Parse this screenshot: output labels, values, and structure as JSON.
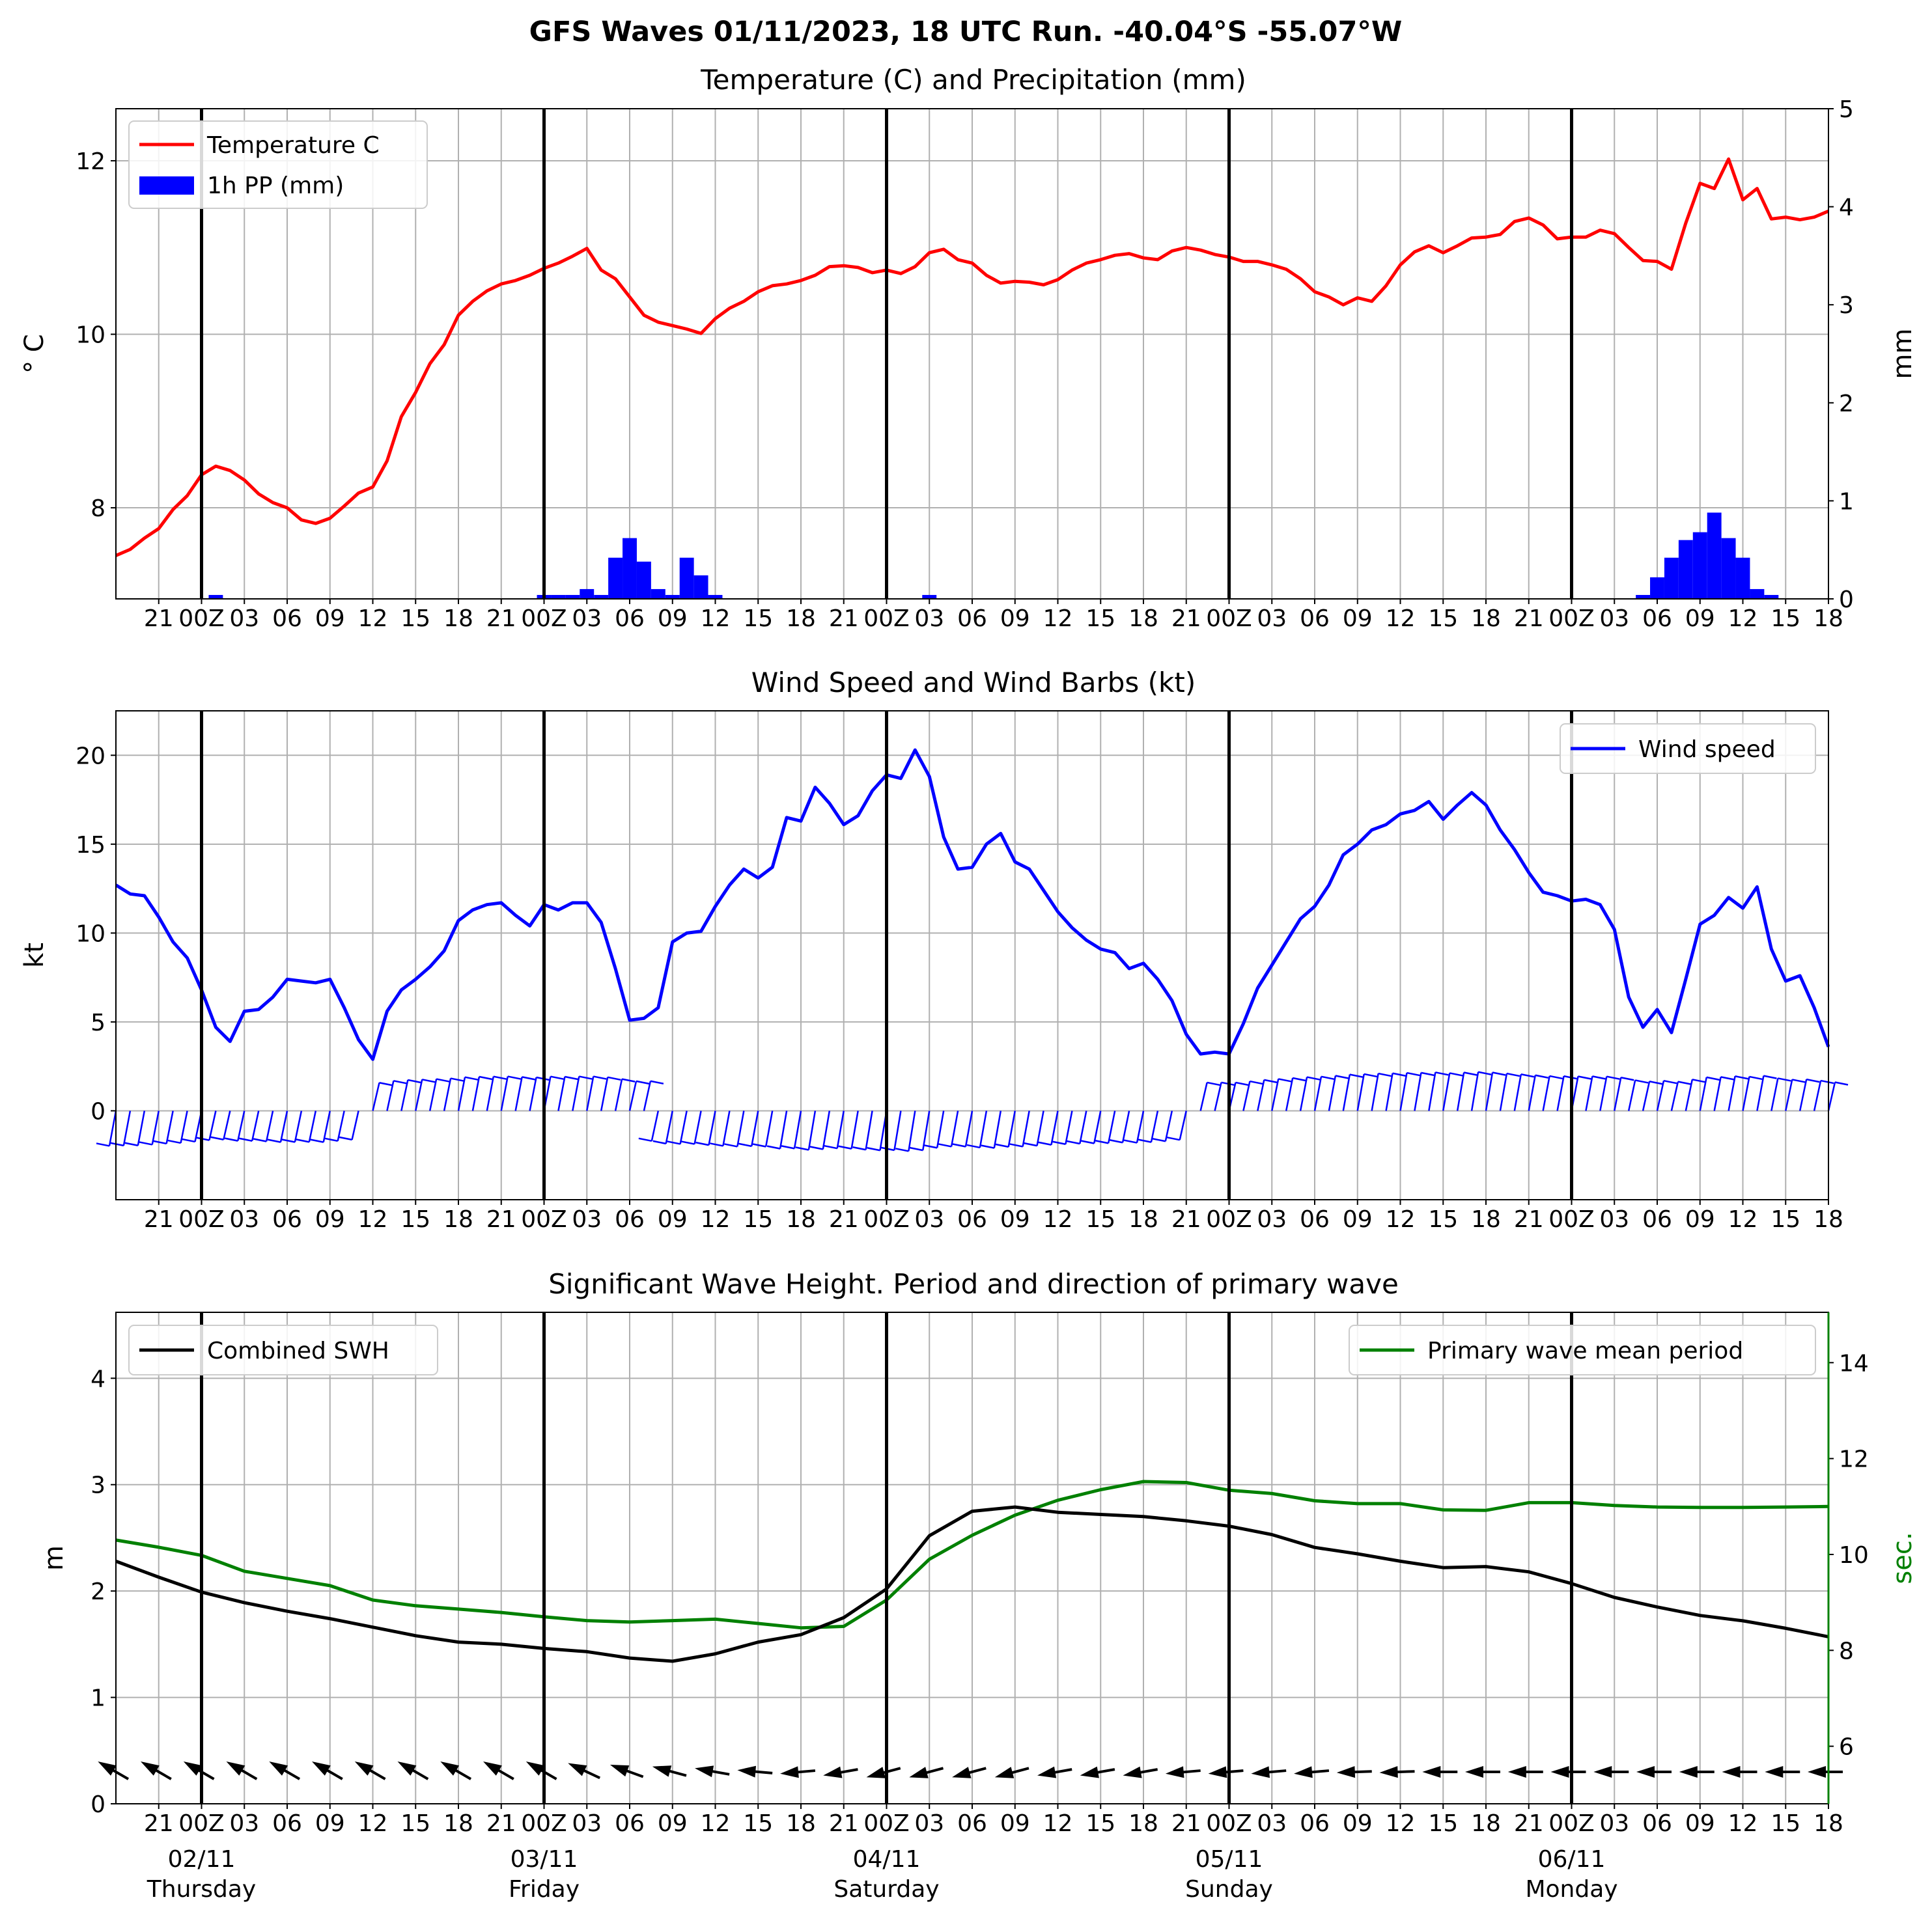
{
  "suptitle": "GFS Waves 01/11/2023, 18 UTC Run. -40.04°S -55.07°W",
  "colors": {
    "temperature": "#ff0000",
    "precip": "#0000ff",
    "wind": "#0000ff",
    "swh": "#000000",
    "period": "#008000",
    "grid": "#b0b0b0",
    "day_line": "#000000"
  },
  "time_axis": {
    "hours_labels": [
      "21",
      "00Z",
      "03",
      "06",
      "09",
      "12",
      "15",
      "18",
      "21",
      "00Z",
      "03",
      "06",
      "09",
      "12",
      "15",
      "18",
      "21",
      "00Z",
      "03",
      "06",
      "09",
      "12",
      "15",
      "18",
      "21",
      "00Z",
      "03",
      "06",
      "09",
      "12",
      "15",
      "18",
      "21",
      "00Z",
      "03",
      "06",
      "09",
      "12",
      "15",
      "18"
    ],
    "day_labels": [
      {
        "date": "02/11",
        "weekday": "Thursday"
      },
      {
        "date": "03/11",
        "weekday": "Friday"
      },
      {
        "date": "04/11",
        "weekday": "Saturday"
      },
      {
        "date": "05/11",
        "weekday": "Sunday"
      },
      {
        "date": "06/11",
        "weekday": "Monday"
      }
    ],
    "span_hours": [
      0,
      120
    ],
    "day_boundaries_hours": [
      6,
      30,
      54,
      78,
      102
    ]
  },
  "chart_data": [
    {
      "type": "line",
      "title": "Temperature (C) and Precipitation (mm)",
      "ylabel": "$^\\circ$C",
      "ylabel_display": "° C",
      "y2label": "mm",
      "ylim": [
        6.95,
        12.6
      ],
      "y2lim": [
        0,
        5
      ],
      "yticks": [
        8,
        10,
        12
      ],
      "y2ticks": [
        0,
        1,
        2,
        3,
        4,
        5
      ],
      "legend": [
        "Temperature C",
        "1h PP (mm)"
      ],
      "legend_position": "upper left",
      "grid": true,
      "series": [
        {
          "name": "Temperature C",
          "x": [
            0,
            1,
            2,
            3,
            4,
            5,
            6,
            7,
            8,
            9,
            10,
            11,
            12,
            13,
            14,
            15,
            16,
            17,
            18,
            19,
            20,
            21,
            22,
            23,
            24,
            25,
            26,
            27,
            28,
            29,
            30,
            31,
            32,
            33,
            34,
            35,
            36,
            37,
            38,
            39,
            40,
            41,
            42,
            43,
            44,
            45,
            46,
            47,
            48,
            49,
            50,
            51,
            52,
            53,
            54,
            55,
            56,
            57,
            58,
            59,
            60,
            61,
            62,
            63,
            64,
            65,
            66,
            67,
            68,
            69,
            70,
            71,
            72,
            73,
            74,
            75,
            76,
            77,
            78,
            79,
            80,
            81,
            82,
            83,
            84,
            85,
            86,
            87,
            88,
            89,
            90,
            91,
            92,
            93,
            94,
            95,
            96,
            97,
            98,
            99,
            100,
            101,
            102,
            103,
            104,
            105,
            106,
            107,
            108,
            109,
            110,
            111,
            112,
            113,
            114,
            115,
            116,
            117,
            118,
            119,
            120
          ],
          "values": [
            7.45,
            7.52,
            7.65,
            7.76,
            7.98,
            8.14,
            8.38,
            8.48,
            8.43,
            8.32,
            8.16,
            8.06,
            8.0,
            7.86,
            7.82,
            7.88,
            8.02,
            8.17,
            8.24,
            8.54,
            9.05,
            9.33,
            9.66,
            9.88,
            10.22,
            10.38,
            10.5,
            10.58,
            10.62,
            10.68,
            10.76,
            10.82,
            10.9,
            10.99,
            10.74,
            10.64,
            10.43,
            10.22,
            10.14,
            10.1,
            10.06,
            10.01,
            10.18,
            10.3,
            10.38,
            10.49,
            10.56,
            10.58,
            10.62,
            10.68,
            10.78,
            10.79,
            10.77,
            10.71,
            10.74,
            10.7,
            10.78,
            10.94,
            10.98,
            10.86,
            10.82,
            10.68,
            10.59,
            10.61,
            10.6,
            10.57,
            10.63,
            10.74,
            10.82,
            10.86,
            10.91,
            10.93,
            10.88,
            10.86,
            10.96,
            11.0,
            10.97,
            10.92,
            10.89,
            10.84,
            10.84,
            10.8,
            10.75,
            10.64,
            10.49,
            10.43,
            10.34,
            10.42,
            10.38,
            10.56,
            10.8,
            10.95,
            11.02,
            10.94,
            11.02,
            11.11,
            11.12,
            11.15,
            11.3,
            11.34,
            11.26,
            11.1,
            11.12,
            11.12,
            11.2,
            11.16,
            11.0,
            10.85,
            10.84,
            10.75,
            11.28,
            11.74,
            11.68,
            12.02,
            11.55,
            11.68,
            11.33,
            11.35,
            11.32,
            11.35,
            11.42
          ]
        },
        {
          "name": "1h PP (mm)",
          "type": "bar",
          "x": [
            7,
            30,
            31,
            32,
            33,
            34,
            35,
            36,
            37,
            38,
            39,
            40,
            41,
            42,
            57,
            107,
            108,
            109,
            110,
            111,
            112,
            113,
            114,
            115,
            116
          ],
          "values": [
            0.04,
            0.04,
            0.04,
            0.04,
            0.1,
            0.04,
            0.42,
            0.62,
            0.38,
            0.1,
            0.04,
            0.42,
            0.24,
            0.04,
            0.04,
            0.04,
            0.22,
            0.42,
            0.6,
            0.68,
            0.88,
            0.62,
            0.42,
            0.1,
            0.04
          ]
        }
      ]
    },
    {
      "type": "line",
      "title": "Wind Speed and Wind Barbs (kt)",
      "ylabel": "kt",
      "ylim": [
        -5,
        22.5
      ],
      "yticks": [
        0,
        5,
        10,
        15,
        20
      ],
      "legend": [
        "Wind speed"
      ],
      "legend_position": "upper right",
      "grid": true,
      "series": [
        {
          "name": "Wind speed",
          "x": [
            0,
            1,
            2,
            3,
            4,
            5,
            6,
            7,
            8,
            9,
            10,
            11,
            12,
            13,
            14,
            15,
            16,
            17,
            18,
            19,
            20,
            21,
            22,
            23,
            24,
            25,
            26,
            27,
            28,
            29,
            30,
            31,
            32,
            33,
            34,
            35,
            36,
            37,
            38,
            39,
            40,
            41,
            42,
            43,
            44,
            45,
            46,
            47,
            48,
            49,
            50,
            51,
            52,
            53,
            54,
            55,
            56,
            57,
            58,
            59,
            60,
            61,
            62,
            63,
            64,
            65,
            66,
            67,
            68,
            69,
            70,
            71,
            72,
            73,
            74,
            75,
            76,
            77,
            78,
            79,
            80,
            81,
            82,
            83,
            84,
            85,
            86,
            87,
            88,
            89,
            90,
            91,
            92,
            93,
            94,
            95,
            96,
            97,
            98,
            99,
            100,
            101,
            102,
            103,
            104,
            105,
            106,
            107,
            108,
            109,
            110,
            111,
            112,
            113,
            114,
            115,
            116,
            117,
            118,
            119,
            120
          ],
          "values": [
            12.7,
            12.2,
            12.1,
            10.9,
            9.5,
            8.6,
            6.8,
            4.7,
            3.9,
            5.6,
            5.7,
            6.4,
            7.4,
            7.3,
            7.2,
            7.4,
            5.8,
            4.0,
            2.9,
            5.6,
            6.8,
            7.4,
            8.1,
            9.0,
            10.7,
            11.3,
            11.6,
            11.7,
            11.0,
            10.4,
            11.6,
            11.3,
            11.7,
            11.7,
            10.6,
            8.0,
            5.1,
            5.2,
            5.8,
            9.5,
            10.0,
            10.1,
            11.5,
            12.7,
            13.6,
            13.1,
            13.7,
            16.5,
            16.3,
            18.2,
            17.3,
            16.1,
            16.6,
            18.0,
            18.9,
            18.7,
            20.3,
            18.8,
            15.4,
            13.6,
            13.7,
            15.0,
            15.6,
            14.0,
            13.6,
            12.4,
            11.2,
            10.3,
            9.6,
            9.1,
            8.9,
            8.0,
            8.3,
            7.4,
            6.2,
            4.3,
            3.2,
            3.3,
            3.2,
            4.9,
            6.9,
            8.2,
            9.5,
            10.8,
            11.5,
            12.7,
            14.4,
            15.0,
            15.8,
            16.1,
            16.7,
            16.9,
            17.4,
            16.4,
            17.2,
            17.9,
            17.2,
            15.8,
            14.7,
            13.4,
            12.3,
            12.1,
            11.8,
            11.9,
            11.6,
            10.2,
            6.4,
            4.7,
            5.7,
            4.4,
            7.4,
            10.5,
            11.0,
            12.0,
            11.4,
            12.6,
            9.1,
            7.3,
            7.6,
            5.8,
            3.6
          ]
        }
      ]
    },
    {
      "type": "line",
      "title": "Significant Wave Height. Period and direction of primary wave",
      "ylabel": "m",
      "y2label": "sec.",
      "ylim": [
        0,
        4.62
      ],
      "y2lim": [
        4.8,
        15.05
      ],
      "yticks": [
        0,
        1,
        2,
        3,
        4
      ],
      "y2ticks": [
        6,
        8,
        10,
        12,
        14
      ],
      "legend": [
        "Combined SWH",
        "Primary wave mean period"
      ],
      "legend_position": "upper left / upper right",
      "grid": true,
      "series": [
        {
          "name": "Combined SWH",
          "x": [
            0,
            3,
            6,
            9,
            12,
            15,
            18,
            21,
            24,
            27,
            30,
            33,
            36,
            39,
            42,
            45,
            48,
            51,
            54,
            57,
            60,
            63,
            66,
            69,
            72,
            75,
            78,
            81,
            84,
            87,
            90,
            93,
            96,
            99,
            102,
            105,
            108,
            111,
            114,
            117,
            120
          ],
          "values": [
            2.28,
            2.13,
            1.99,
            1.89,
            1.81,
            1.74,
            1.66,
            1.58,
            1.52,
            1.5,
            1.46,
            1.43,
            1.37,
            1.34,
            1.41,
            1.52,
            1.59,
            1.75,
            2.02,
            2.52,
            2.75,
            2.79,
            2.74,
            2.72,
            2.7,
            2.66,
            2.61,
            2.53,
            2.41,
            2.35,
            2.28,
            2.22,
            2.23,
            2.18,
            2.07,
            1.94,
            1.85,
            1.77,
            1.72,
            1.65,
            1.57
          ]
        },
        {
          "name": "Primary wave mean period",
          "axis": "right",
          "x": [
            0,
            3,
            6,
            9,
            12,
            15,
            18,
            21,
            24,
            27,
            30,
            33,
            36,
            39,
            42,
            45,
            48,
            51,
            54,
            57,
            60,
            63,
            66,
            69,
            72,
            75,
            78,
            81,
            84,
            87,
            90,
            93,
            96,
            99,
            102,
            105,
            108,
            111,
            114,
            117,
            120
          ],
          "values": [
            10.3,
            10.15,
            9.98,
            9.65,
            9.5,
            9.35,
            9.05,
            8.93,
            8.86,
            8.79,
            8.7,
            8.62,
            8.59,
            8.62,
            8.65,
            8.56,
            8.47,
            8.5,
            9.05,
            9.9,
            10.4,
            10.82,
            11.13,
            11.35,
            11.52,
            11.5,
            11.34,
            11.27,
            11.12,
            11.06,
            11.06,
            10.93,
            10.92,
            11.08,
            11.08,
            11.02,
            10.99,
            10.98,
            10.98,
            10.99,
            11.0
          ]
        },
        {
          "name": "primary wave direction arrows",
          "type": "arrows",
          "x": [
            0,
            3,
            6,
            9,
            12,
            15,
            18,
            21,
            24,
            27,
            30,
            33,
            36,
            39,
            42,
            45,
            48,
            51,
            54,
            57,
            60,
            63,
            66,
            69,
            72,
            75,
            78,
            81,
            84,
            87,
            90,
            93,
            96,
            99,
            102,
            105,
            108,
            111,
            114,
            117,
            120
          ],
          "direction_deg": [
            300,
            300,
            300,
            300,
            300,
            300,
            300,
            300,
            300,
            300,
            300,
            295,
            290,
            285,
            280,
            275,
            265,
            260,
            255,
            255,
            255,
            255,
            260,
            260,
            260,
            265,
            265,
            265,
            265,
            268,
            268,
            270,
            270,
            270,
            270,
            270,
            270,
            270,
            270,
            270,
            270
          ]
        }
      ]
    }
  ]
}
